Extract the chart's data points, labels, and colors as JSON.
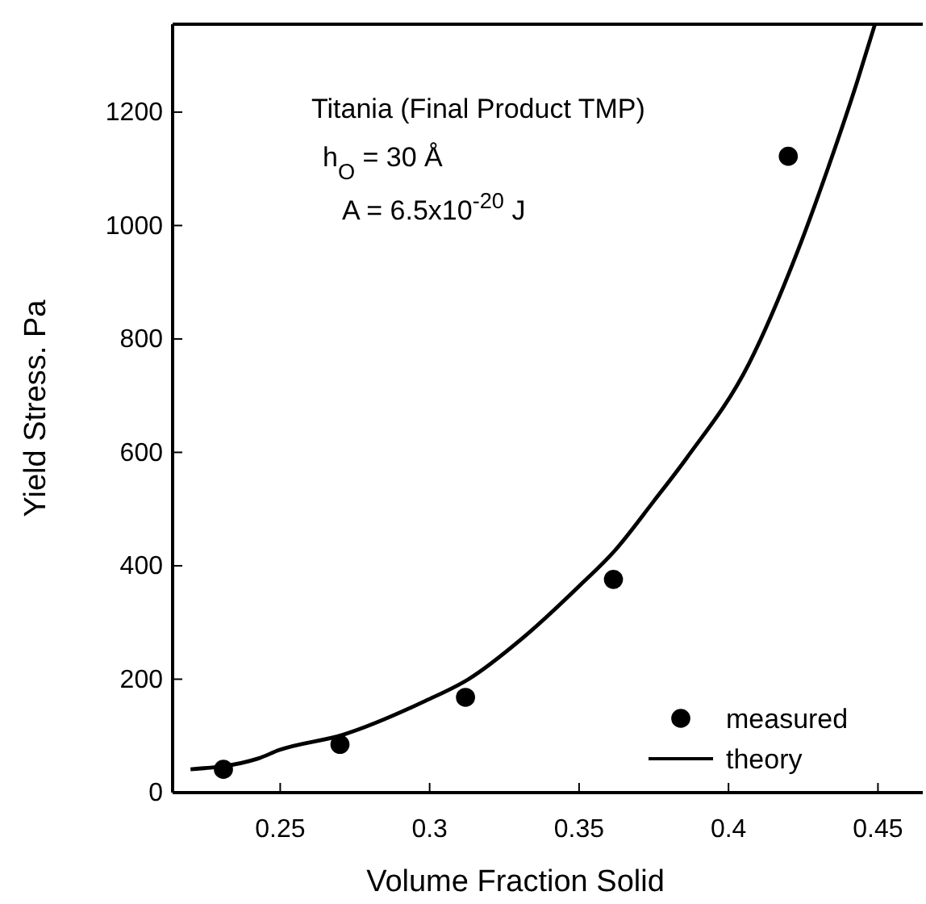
{
  "chart_data": {
    "type": "scatter",
    "xlabel": "Volume Fraction Solid",
    "ylabel": "Yield Stress. Pa",
    "xlim": [
      0.214,
      0.465
    ],
    "xticks": [
      0.25,
      0.3,
      0.35,
      0.4,
      0.45
    ],
    "ylim": [
      0,
      1355
    ],
    "yticks": [
      0,
      200,
      400,
      600,
      800,
      1000,
      1200
    ],
    "annotations": [
      "Titania  (Final Product TMP)",
      "h$_{O}$  =  30 Å",
      "A  =  6.5x10$^{-20}$ J"
    ],
    "legend": "bottom right",
    "grid": false,
    "series": [
      {
        "name": "measured",
        "marker": "circle",
        "color": "#000000",
        "x": [
          0.231,
          0.27,
          0.312,
          0.3615,
          0.42
        ],
        "values": [
          41,
          85,
          168,
          376,
          1122
        ]
      },
      {
        "name": "theory",
        "type": "line",
        "marker": "none",
        "line_style": "solid",
        "color": "#000000",
        "x": [
          0.22,
          0.2425,
          0.2496,
          0.271,
          0.2987,
          0.313,
          0.331,
          0.35,
          0.362,
          0.375,
          0.386,
          0.4068,
          0.423,
          0.434,
          0.443,
          0.449
        ],
        "values": [
          41,
          60,
          75,
          102,
          162,
          200,
          272,
          364,
          427,
          514,
          590,
          756,
          953,
          1112,
          1253,
          1355
        ]
      }
    ]
  }
}
